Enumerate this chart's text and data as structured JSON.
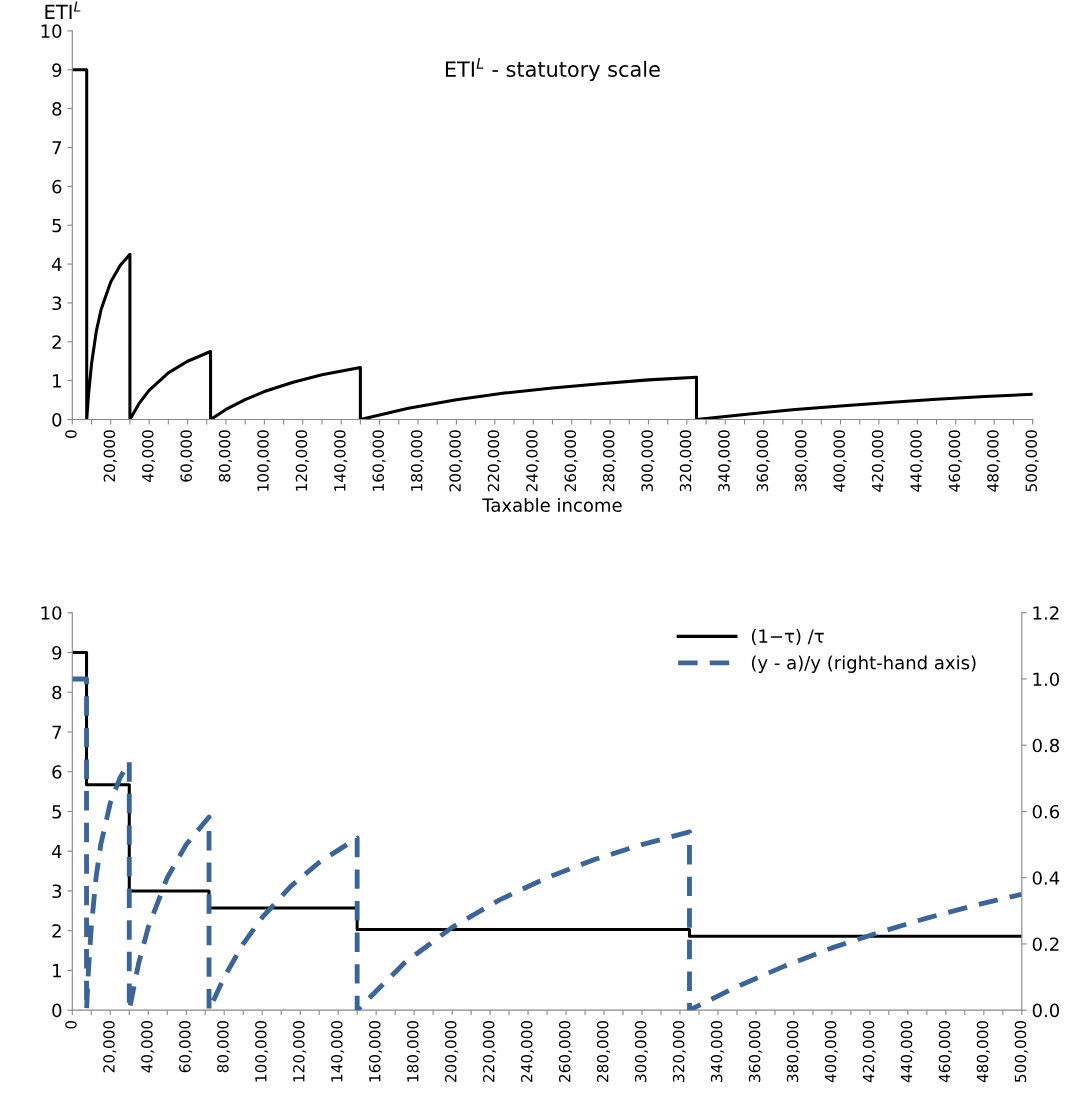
{
  "chart_data": [
    {
      "type": "line",
      "title": "ETI$^{L}$ - statutory scale",
      "ylabel": "ETI$^{L}$",
      "xlabel": "Taxable income",
      "xlim": [
        0,
        500000
      ],
      "ylim": [
        0,
        10
      ],
      "yticks": [
        0,
        1,
        2,
        3,
        4,
        5,
        6,
        7,
        8,
        9,
        10
      ],
      "xticks": [
        0,
        {
          "value": 10000,
          "label": null
        },
        {
          "value": 20000,
          "label": "20,000"
        },
        {
          "value": 30000,
          "label": null
        },
        {
          "value": 40000,
          "label": "40,000"
        },
        {
          "value": 50000,
          "label": null
        },
        {
          "value": 60000,
          "label": "60,000"
        },
        {
          "value": 70000,
          "label": null
        },
        {
          "value": 80000,
          "label": "80,000"
        },
        {
          "value": 90000,
          "label": null
        },
        {
          "value": 100000,
          "label": "100,000"
        },
        {
          "value": 110000,
          "label": null
        },
        {
          "value": 120000,
          "label": "120,000"
        },
        {
          "value": 130000,
          "label": null
        },
        {
          "value": 140000,
          "label": "140,000"
        },
        {
          "value": 150000,
          "label": null
        },
        {
          "value": 160000,
          "label": "160,000"
        },
        {
          "value": 170000,
          "label": null
        },
        {
          "value": 180000,
          "label": "180,000"
        },
        {
          "value": 190000,
          "label": null
        },
        {
          "value": 200000,
          "label": "200,000"
        },
        {
          "value": 210000,
          "label": null
        },
        {
          "value": 220000,
          "label": "220,000"
        },
        {
          "value": 230000,
          "label": null
        },
        {
          "value": 240000,
          "label": "240,000"
        },
        {
          "value": 250000,
          "label": null
        },
        {
          "value": 260000,
          "label": "260,000"
        },
        {
          "value": 270000,
          "label": null
        },
        {
          "value": 280000,
          "label": "280,000"
        },
        {
          "value": 290000,
          "label": null
        },
        {
          "value": 300000,
          "label": "300,000"
        },
        {
          "value": 310000,
          "label": null
        },
        {
          "value": 320000,
          "label": "320,000"
        },
        {
          "value": 330000,
          "label": null
        },
        {
          "value": 340000,
          "label": "340,000"
        },
        {
          "value": 350000,
          "label": null
        },
        {
          "value": 360000,
          "label": "360,000"
        },
        {
          "value": 370000,
          "label": null
        },
        {
          "value": 380000,
          "label": "380,000"
        },
        {
          "value": 390000,
          "label": null
        },
        {
          "value": 400000,
          "label": "400,000"
        },
        {
          "value": 410000,
          "label": null
        },
        {
          "value": 420000,
          "label": "420,000"
        },
        {
          "value": 430000,
          "label": null
        },
        {
          "value": 440000,
          "label": "440,000"
        },
        {
          "value": 450000,
          "label": null
        },
        {
          "value": 460000,
          "label": "460,000"
        },
        {
          "value": 470000,
          "label": null
        },
        {
          "value": 480000,
          "label": "480,000"
        },
        {
          "value": 490000,
          "label": null
        },
        {
          "value": 500000,
          "label": "500,000"
        }
      ],
      "grid": false,
      "legend": false,
      "series": [
        {
          "color": "#000000",
          "line_style": "solid",
          "x": [
            0,
            7500,
            7500,
            8500,
            10000,
            12500,
            15000,
            20000,
            25000,
            30000,
            30000,
            35000,
            40000,
            50000,
            60000,
            72000,
            72000,
            80000,
            90000,
            100000,
            115000,
            130000,
            150000,
            150000,
            175000,
            200000,
            225000,
            250000,
            275000,
            300000,
            325000,
            325000,
            350000,
            375000,
            400000,
            425000,
            450000,
            475000,
            500000
          ],
          "values": [
            9,
            9,
            0,
            0.67,
            1.42,
            2.27,
            2.83,
            3.54,
            3.97,
            4.25,
            0,
            0.43,
            0.75,
            1.2,
            1.5,
            1.75,
            0,
            0.26,
            0.51,
            0.72,
            0.96,
            1.15,
            1.34,
            0,
            0.29,
            0.51,
            0.68,
            0.81,
            0.92,
            1.02,
            1.09,
            0,
            0.13,
            0.25,
            0.35,
            0.44,
            0.52,
            0.59,
            0.65
          ]
        }
      ]
    },
    {
      "type": "line",
      "xlim": [
        0,
        500000
      ],
      "ylim": [
        0,
        10
      ],
      "yticks": [
        0,
        1,
        2,
        3,
        4,
        5,
        6,
        7,
        8,
        9,
        10
      ],
      "y2lim": [
        0,
        1.2
      ],
      "y2ticks": [
        {
          "value": 0,
          "label": "0.0"
        },
        {
          "value": 0.2,
          "label": "0.2"
        },
        {
          "value": 0.4,
          "label": "0.4"
        },
        {
          "value": 0.6,
          "label": "0.6"
        },
        {
          "value": 0.8,
          "label": "0.8"
        },
        {
          "value": 1.0,
          "label": "1.0"
        },
        {
          "value": 1.2,
          "label": "1.2"
        }
      ],
      "xticks": [
        0,
        {
          "value": 10000,
          "label": null
        },
        {
          "value": 20000,
          "label": "20,000"
        },
        {
          "value": 30000,
          "label": null
        },
        {
          "value": 40000,
          "label": "40,000"
        },
        {
          "value": 50000,
          "label": null
        },
        {
          "value": 60000,
          "label": "60,000"
        },
        {
          "value": 70000,
          "label": null
        },
        {
          "value": 80000,
          "label": "80,000"
        },
        {
          "value": 90000,
          "label": null
        },
        {
          "value": 100000,
          "label": "100,000"
        },
        {
          "value": 110000,
          "label": null
        },
        {
          "value": 120000,
          "label": "120,000"
        },
        {
          "value": 130000,
          "label": null
        },
        {
          "value": 140000,
          "label": "140,000"
        },
        {
          "value": 150000,
          "label": null
        },
        {
          "value": 160000,
          "label": "160,000"
        },
        {
          "value": 170000,
          "label": null
        },
        {
          "value": 180000,
          "label": "180,000"
        },
        {
          "value": 190000,
          "label": null
        },
        {
          "value": 200000,
          "label": "200,000"
        },
        {
          "value": 210000,
          "label": null
        },
        {
          "value": 220000,
          "label": "220,000"
        },
        {
          "value": 230000,
          "label": null
        },
        {
          "value": 240000,
          "label": "240,000"
        },
        {
          "value": 250000,
          "label": null
        },
        {
          "value": 260000,
          "label": "260,000"
        },
        {
          "value": 270000,
          "label": null
        },
        {
          "value": 280000,
          "label": "280,000"
        },
        {
          "value": 290000,
          "label": null
        },
        {
          "value": 300000,
          "label": "300,000"
        },
        {
          "value": 310000,
          "label": null
        },
        {
          "value": 320000,
          "label": "320,000"
        },
        {
          "value": 330000,
          "label": null
        },
        {
          "value": 340000,
          "label": "340,000"
        },
        {
          "value": 350000,
          "label": null
        },
        {
          "value": 360000,
          "label": "360,000"
        },
        {
          "value": 370000,
          "label": null
        },
        {
          "value": 380000,
          "label": "380,000"
        },
        {
          "value": 390000,
          "label": null
        },
        {
          "value": 400000,
          "label": "400,000"
        },
        {
          "value": 410000,
          "label": null
        },
        {
          "value": 420000,
          "label": "420,000"
        },
        {
          "value": 430000,
          "label": null
        },
        {
          "value": 440000,
          "label": "440,000"
        },
        {
          "value": 450000,
          "label": null
        },
        {
          "value": 460000,
          "label": "460,000"
        },
        {
          "value": 470000,
          "label": null
        },
        {
          "value": 480000,
          "label": "480,000"
        },
        {
          "value": 490000,
          "label": null
        },
        {
          "value": 500000,
          "label": "500,000"
        }
      ],
      "grid": false,
      "legend": "top right",
      "series": [
        {
          "name": "(1−τ) /τ",
          "type": "step",
          "color": "#000000",
          "line_style": "solid",
          "x": [
            0,
            7500,
            30000,
            72000,
            150000,
            325000,
            500000
          ],
          "values": [
            9,
            5.67,
            3,
            2.57,
            2.03,
            1.86,
            1.86
          ]
        },
        {
          "name": "(y - a)/y (right-hand axis)",
          "type": "line",
          "axis": "y2",
          "color": "#3c6496",
          "line_style": "dashed",
          "x": [
            0,
            7500,
            7500,
            8500,
            10000,
            12500,
            15000,
            20000,
            25000,
            30000,
            30000,
            35000,
            40000,
            50000,
            60000,
            72000,
            72000,
            80000,
            90000,
            100000,
            115000,
            130000,
            150000,
            150000,
            175000,
            200000,
            225000,
            250000,
            275000,
            300000,
            325000,
            325000,
            350000,
            375000,
            400000,
            425000,
            450000,
            475000,
            500000
          ],
          "values": [
            1,
            1,
            0,
            0.118,
            0.25,
            0.4,
            0.5,
            0.625,
            0.7,
            0.75,
            0,
            0.143,
            0.25,
            0.4,
            0.5,
            0.583,
            0,
            0.1,
            0.2,
            0.28,
            0.374,
            0.446,
            0.52,
            0,
            0.143,
            0.25,
            0.333,
            0.4,
            0.455,
            0.5,
            0.538,
            0,
            0.071,
            0.133,
            0.188,
            0.235,
            0.278,
            0.316,
            0.35
          ]
        }
      ]
    }
  ]
}
